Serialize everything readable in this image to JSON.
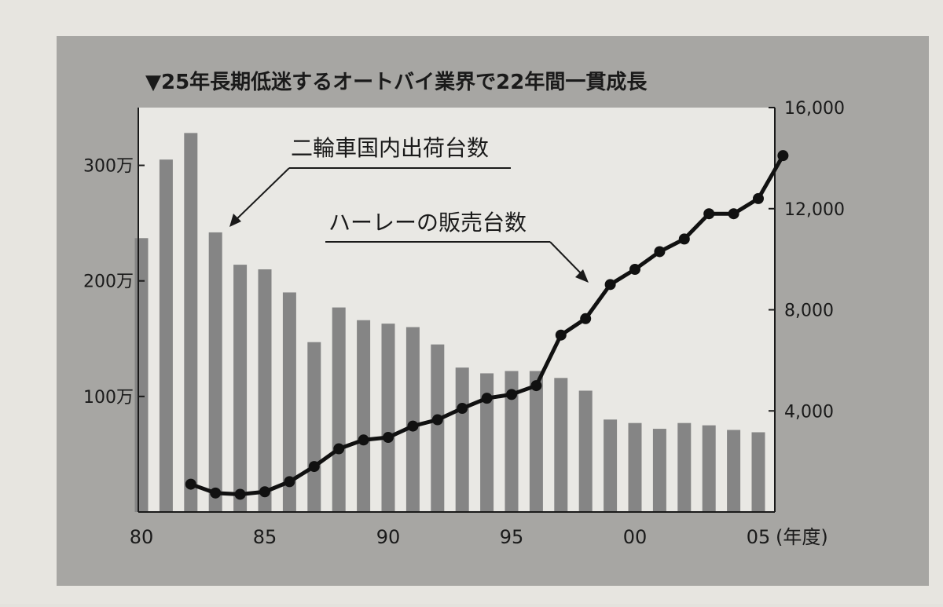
{
  "chart_data": {
    "type": "bar+line",
    "title": "▼25年長期低迷するオートバイ業界で22年間一貫成長",
    "x_unit_label": "(年度)",
    "x_ticks": [
      "80",
      "85",
      "90",
      "95",
      "00",
      "05"
    ],
    "y_left_ticks": [
      "100万",
      "200万",
      "300万"
    ],
    "y_left_tick_values": [
      1000000,
      2000000,
      3000000
    ],
    "y_left_range": [
      0,
      3500000
    ],
    "y_right_ticks": [
      "4,000",
      "8,000",
      "12,000",
      "16,000"
    ],
    "y_right_tick_values": [
      4000,
      8000,
      12000,
      16000
    ],
    "y_right_range": [
      0,
      16000
    ],
    "grid": false,
    "x": [
      1980,
      1981,
      1982,
      1983,
      1984,
      1985,
      1986,
      1987,
      1988,
      1989,
      1990,
      1991,
      1992,
      1993,
      1994,
      1995,
      1996,
      1997,
      1998,
      1999,
      2000,
      2001,
      2002,
      2003,
      2004,
      2005
    ],
    "series": [
      {
        "name": "二輪車国内出荷台数",
        "type": "bar",
        "axis": "left",
        "color": "#858585",
        "values": [
          2370000,
          3050000,
          3280000,
          2420000,
          2140000,
          2100000,
          1900000,
          1470000,
          1770000,
          1660000,
          1630000,
          1600000,
          1450000,
          1250000,
          1200000,
          1220000,
          1220000,
          1160000,
          1050000,
          800000,
          770000,
          720000,
          770000,
          750000,
          710000,
          690000
        ]
      },
      {
        "name": "ハーレーの販売台数",
        "type": "line",
        "axis": "right",
        "color": "#111111",
        "x": [
          1982,
          1983,
          1984,
          1985,
          1986,
          1987,
          1988,
          1989,
          1990,
          1991,
          1992,
          1993,
          1994,
          1995,
          1996,
          1997,
          1998,
          1999,
          2000,
          2001,
          2002,
          2003,
          2004,
          2005,
          2006
        ],
        "values": [
          1100,
          750,
          700,
          800,
          1200,
          1800,
          2500,
          2850,
          2950,
          3400,
          3650,
          4100,
          4500,
          4650,
          5000,
          7000,
          7650,
          9000,
          9600,
          10300,
          10800,
          11800,
          11800,
          12400,
          14100
        ]
      }
    ],
    "annotations": [
      {
        "text": "二輪車国内出荷台数",
        "target": "bars"
      },
      {
        "text": "ハーレーの販売台数",
        "target": "line"
      }
    ]
  }
}
